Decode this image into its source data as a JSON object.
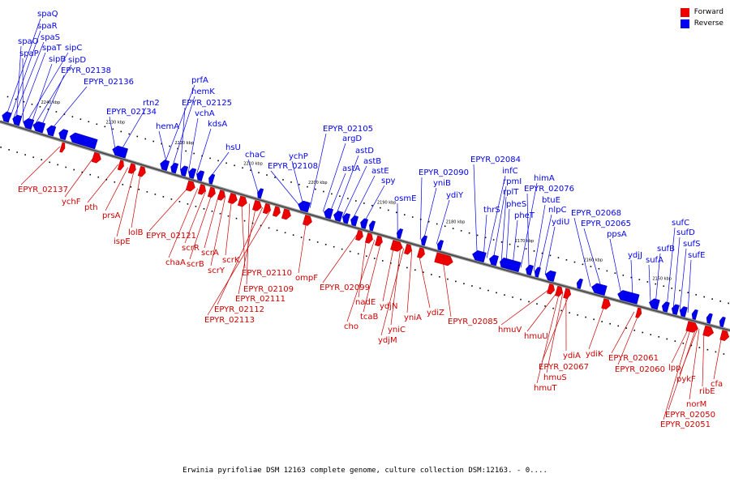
{
  "colors": {
    "forward": "#ee0000",
    "reverse": "#0000ee",
    "axis": "#666666"
  },
  "legend": {
    "forward": "Forward",
    "reverse": "Reverse"
  },
  "caption": "Erwinia pyrifoliae DSM 12163 complete genome, culture collection DSM:12163. - 0....",
  "ticks": [
    "2240 kbp",
    "2230 kbp",
    "2220 kbp",
    "2210 kbp",
    "2200 kbp",
    "2190 kbp",
    "2180 kbp",
    "2170 kbp",
    "2160 kbp",
    "2150 kbp"
  ],
  "reverse_labels": [
    "spaQ",
    "spaR",
    "spaS",
    "spaO",
    "spaT",
    "sipC",
    "spaP",
    "sipB",
    "sipD",
    "EPYR_02138",
    "EPYR_02136",
    "prfA",
    "hemK",
    "rtn2",
    "EPYR_02125",
    "EPYR_02134",
    "vchA",
    "hemA",
    "kdsA",
    "hsU",
    "chaC",
    "EPYR_02105",
    "argD",
    "ychP",
    "astD",
    "astB",
    "EPYR_02108",
    "astA",
    "astE",
    "spy",
    "osmE",
    "EPYR_02090",
    "yniB",
    "ydiY",
    "EPYR_02084",
    "infC",
    "rpmI",
    "rplT",
    "himA",
    "pheS",
    "EPYR_02076",
    "thrS",
    "pheT",
    "btuE",
    "nlpC",
    "ydiU",
    "EPYR_02068",
    "EPYR_02065",
    "ppsA",
    "sufC",
    "sufD",
    "ydjJ",
    "sufB",
    "sufS",
    "sufA",
    "sufE"
  ],
  "forward_labels": [
    "EPYR_02137",
    "ychF",
    "pth",
    "prsA",
    "ispE",
    "lolB",
    "EPYR_02121",
    "chaA",
    "scrR",
    "scrB",
    "scrA",
    "scrY",
    "scrK",
    "EPYR_02110",
    "EPYR_02109",
    "EPYR_02111",
    "EPYR_02112",
    "EPYR_02113",
    "ompF",
    "EPYR_02099",
    "nadE",
    "cho",
    "tcaB",
    "ydjN",
    "yniC",
    "yniA",
    "ydjM",
    "ydiZ",
    "EPYR_02085",
    "hmuV",
    "hmuU",
    "ydiA",
    "EPYR_02067",
    "hmuS",
    "hmuT",
    "ydiK",
    "EPYR_02061",
    "EPYR_02060",
    "lpp",
    "pykF",
    "ribE",
    "cfa",
    "norM",
    "EPYR_02050",
    "EPYR_02051"
  ]
}
